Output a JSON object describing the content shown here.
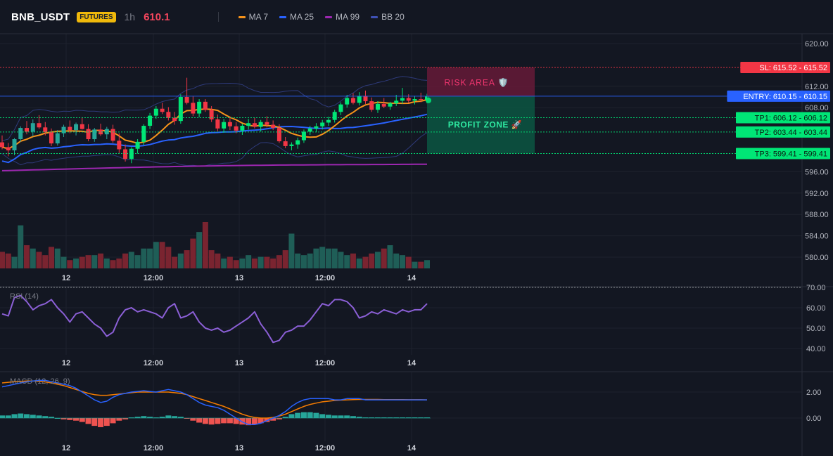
{
  "header": {
    "symbol": "BNB_USDT",
    "badge": "FUTURES",
    "timeframe": "1h",
    "price": "610.1",
    "legend": [
      {
        "label": "MA 7",
        "color": "#f7931a"
      },
      {
        "label": "MA 25",
        "color": "#2962ff"
      },
      {
        "label": "MA 99",
        "color": "#9c27b0"
      },
      {
        "label": "BB 20",
        "color": "#3f51b5"
      }
    ]
  },
  "colors": {
    "up": "#26a69a",
    "up_bright": "#00e676",
    "down": "#f23645",
    "entry": "#2962ff",
    "sl": "#f23645",
    "tp": "#00e676"
  },
  "time_axis_labels": [
    "12",
    "12:00",
    "13",
    "12:00",
    "14"
  ],
  "chart_data": [
    {
      "type": "candlestick",
      "ylim": [
        577.5,
        621.5
      ],
      "y_ticks": [
        "620.00",
        "612.00",
        "608.00",
        "596.00",
        "592.00",
        "588.00",
        "584.00",
        "580.00"
      ],
      "ohlc": [
        [
          601.5,
          602.8,
          600.2,
          600.6
        ],
        [
          600.6,
          601.4,
          598.9,
          600.0
        ],
        [
          600.0,
          602.3,
          599.1,
          602.1
        ],
        [
          602.1,
          604.5,
          601.6,
          604.2
        ],
        [
          604.2,
          605.5,
          603.0,
          603.5
        ],
        [
          603.5,
          605.8,
          602.6,
          605.1
        ],
        [
          605.1,
          606.6,
          604.0,
          604.3
        ],
        [
          604.3,
          605.3,
          602.8,
          603.4
        ],
        [
          603.4,
          604.1,
          600.8,
          601.3
        ],
        [
          601.3,
          603.8,
          600.9,
          603.2
        ],
        [
          603.2,
          604.8,
          602.5,
          604.4
        ],
        [
          604.4,
          605.6,
          603.2,
          603.8
        ],
        [
          603.8,
          605.2,
          602.8,
          604.9
        ],
        [
          604.9,
          606.2,
          603.9,
          604.0
        ],
        [
          604.0,
          604.9,
          601.7,
          602.1
        ],
        [
          602.1,
          604.2,
          601.6,
          603.9
        ],
        [
          603.9,
          605.0,
          602.7,
          603.0
        ],
        [
          603.0,
          604.4,
          602.1,
          604.0
        ],
        [
          604.0,
          604.8,
          601.4,
          601.8
        ],
        [
          601.8,
          603.2,
          599.5,
          600.2
        ],
        [
          600.2,
          601.1,
          597.9,
          598.4
        ],
        [
          598.4,
          600.6,
          597.6,
          600.3
        ],
        [
          600.3,
          602.1,
          599.4,
          601.6
        ],
        [
          601.6,
          604.9,
          601.0,
          604.6
        ],
        [
          604.6,
          607.0,
          604.0,
          606.5
        ],
        [
          606.5,
          608.3,
          605.9,
          607.8
        ],
        [
          607.8,
          608.9,
          606.8,
          607.2
        ],
        [
          607.2,
          608.1,
          605.6,
          606.1
        ],
        [
          606.1,
          607.2,
          604.8,
          605.5
        ],
        [
          605.5,
          610.5,
          605.0,
          610.0
        ],
        [
          610.0,
          613.6,
          608.6,
          608.9
        ],
        [
          608.9,
          610.1,
          606.4,
          606.9
        ],
        [
          606.9,
          609.6,
          606.2,
          609.1
        ],
        [
          609.1,
          609.6,
          607.2,
          607.6
        ],
        [
          607.6,
          608.3,
          605.3,
          605.8
        ],
        [
          605.8,
          606.7,
          603.6,
          604.1
        ],
        [
          604.1,
          605.9,
          603.3,
          605.3
        ],
        [
          605.3,
          606.2,
          603.8,
          604.5
        ],
        [
          604.5,
          605.3,
          603.2,
          603.7
        ],
        [
          603.7,
          605.0,
          602.9,
          604.6
        ],
        [
          604.6,
          605.9,
          603.9,
          605.1
        ],
        [
          605.1,
          606.1,
          604.1,
          604.4
        ],
        [
          604.4,
          605.7,
          603.5,
          605.3
        ],
        [
          605.3,
          606.4,
          604.3,
          604.8
        ],
        [
          604.8,
          605.6,
          603.8,
          604.2
        ],
        [
          604.2,
          604.9,
          601.4,
          601.7
        ],
        [
          601.7,
          602.5,
          600.4,
          600.8
        ],
        [
          600.8,
          601.5,
          600.0,
          601.1
        ],
        [
          601.1,
          602.4,
          600.3,
          601.9
        ],
        [
          601.9,
          603.9,
          601.4,
          603.5
        ],
        [
          603.5,
          604.6,
          602.9,
          604.1
        ],
        [
          604.1,
          605.1,
          603.4,
          604.5
        ],
        [
          604.5,
          605.7,
          603.9,
          605.2
        ],
        [
          605.2,
          606.3,
          604.6,
          605.7
        ],
        [
          605.7,
          607.6,
          605.2,
          607.2
        ],
        [
          607.2,
          609.0,
          606.6,
          608.6
        ],
        [
          608.6,
          610.4,
          608.0,
          609.8
        ],
        [
          609.8,
          610.7,
          608.6,
          608.9
        ],
        [
          608.9,
          610.9,
          608.4,
          610.2
        ],
        [
          610.2,
          611.2,
          608.7,
          609.2
        ],
        [
          609.2,
          609.9,
          607.2,
          607.6
        ],
        [
          607.6,
          609.2,
          607.0,
          608.7
        ],
        [
          608.7,
          609.8,
          607.9,
          608.2
        ],
        [
          608.2,
          609.1,
          607.6,
          608.8
        ],
        [
          608.8,
          610.4,
          608.3,
          609.3
        ],
        [
          609.3,
          611.7,
          608.7,
          609.8
        ],
        [
          609.8,
          610.5,
          608.9,
          609.3
        ],
        [
          609.3,
          610.2,
          608.6,
          609.6
        ],
        [
          609.6,
          610.8,
          609.0,
          609.5
        ],
        [
          609.5,
          610.6,
          608.8,
          610.1
        ]
      ],
      "volume": [
        10,
        9,
        7,
        26,
        14,
        12,
        10,
        8,
        13,
        12,
        7,
        5,
        6,
        7,
        8,
        8,
        9,
        6,
        5,
        6,
        9,
        10,
        8,
        12,
        12,
        16,
        16,
        13,
        7,
        9,
        11,
        18,
        22,
        28,
        11,
        9,
        6,
        7,
        5,
        6,
        8,
        6,
        7,
        7,
        6,
        8,
        11,
        21,
        9,
        8,
        9,
        12,
        13,
        12,
        12,
        10,
        8,
        9,
        6,
        7,
        9,
        10,
        12,
        14,
        9,
        8,
        7,
        4,
        4,
        5
      ]
    },
    {
      "type": "line",
      "title": "RSI (14)",
      "ylim": [
        36,
        70
      ],
      "y_ticks": [
        "70.00",
        "60.00",
        "50.00",
        "40.00"
      ],
      "values": [
        57,
        56,
        65,
        66,
        63,
        59,
        61,
        62,
        64,
        60,
        57,
        53,
        57,
        58,
        55,
        52,
        50,
        46,
        48,
        55,
        59,
        60,
        58,
        59,
        58,
        57,
        55,
        60,
        62,
        55,
        56,
        58,
        53,
        50,
        49,
        50,
        48,
        49,
        51,
        53,
        55,
        58,
        52,
        48,
        43,
        44,
        48,
        49,
        51,
        51,
        54,
        58,
        62,
        61,
        64,
        64,
        63,
        60,
        55,
        56,
        58,
        57,
        59,
        58,
        57,
        59,
        58,
        59,
        59,
        62
      ]
    },
    {
      "type": "bar",
      "title": "MACD (12, 26, 9)",
      "ylim": [
        -1.2,
        3.2
      ],
      "y_ticks": [
        "2.00",
        "0.00"
      ],
      "macd": [
        2.4,
        2.5,
        2.6,
        2.7,
        2.8,
        2.85,
        2.9,
        2.9,
        2.8,
        2.7,
        2.6,
        2.5,
        2.3,
        2.0,
        1.7,
        1.4,
        1.2,
        1.3,
        1.6,
        1.8,
        1.9,
        2.0,
        2.05,
        2.1,
        2.05,
        2.0,
        2.1,
        2.2,
        2.1,
        2.0,
        1.8,
        1.5,
        1.2,
        1.0,
        0.9,
        0.8,
        0.6,
        0.3,
        0.0,
        -0.3,
        -0.5,
        -0.5,
        -0.4,
        -0.2,
        0.0,
        0.2,
        0.5,
        0.9,
        1.2,
        1.4,
        1.5,
        1.5,
        1.5,
        1.5,
        1.4,
        1.4,
        1.5,
        1.5,
        1.5,
        1.4,
        1.4,
        1.4,
        1.4,
        1.4,
        1.4,
        1.4,
        1.4,
        1.4,
        1.4,
        1.4
      ],
      "signal": [
        2.7,
        2.75,
        2.8,
        2.82,
        2.85,
        2.85,
        2.82,
        2.78,
        2.7,
        2.6,
        2.5,
        2.35,
        2.2,
        2.05,
        1.9,
        1.8,
        1.75,
        1.75,
        1.8,
        1.85,
        1.9,
        1.95,
        2.0,
        2.0,
        2.0,
        2.0,
        2.0,
        2.0,
        1.95,
        1.9,
        1.8,
        1.65,
        1.5,
        1.35,
        1.2,
        1.05,
        0.9,
        0.7,
        0.5,
        0.3,
        0.15,
        0.05,
        0.0,
        0.0,
        0.05,
        0.15,
        0.3,
        0.5,
        0.7,
        0.9,
        1.05,
        1.15,
        1.25,
        1.3,
        1.35,
        1.38,
        1.4,
        1.42,
        1.43,
        1.43,
        1.43,
        1.43,
        1.42,
        1.42,
        1.42,
        1.42,
        1.41,
        1.41,
        1.41,
        1.4
      ],
      "histogram": [
        0.2,
        0.2,
        0.3,
        0.35,
        0.3,
        0.25,
        0.2,
        0.15,
        0.1,
        0.0,
        -0.1,
        -0.15,
        -0.2,
        -0.3,
        -0.45,
        -0.6,
        -0.7,
        -0.6,
        -0.4,
        -0.2,
        -0.1,
        0.05,
        0.1,
        0.15,
        0.1,
        0.05,
        0.1,
        0.2,
        0.15,
        0.1,
        -0.05,
        -0.2,
        -0.35,
        -0.45,
        -0.5,
        -0.45,
        -0.4,
        -0.4,
        -0.45,
        -0.5,
        -0.55,
        -0.5,
        -0.4,
        -0.3,
        -0.2,
        -0.1,
        0.1,
        0.3,
        0.4,
        0.45,
        0.45,
        0.4,
        0.3,
        0.25,
        0.2,
        0.2,
        0.2,
        0.15,
        0.1,
        0.05,
        0.05,
        0.05,
        0.05,
        0.05,
        0.05,
        0.05,
        0.05,
        0.05,
        0.05,
        0.05
      ]
    }
  ],
  "levels": {
    "sl": {
      "label": "SL: 615.52 - 615.52",
      "value": 615.52
    },
    "entry": {
      "label": "ENTRY: 610.15 - 610.15",
      "value": 610.15
    },
    "tp": [
      {
        "label": "TP1: 606.12 - 606.12",
        "value": 606.12
      },
      {
        "label": "TP2: 603.44 - 603.44",
        "value": 603.44
      },
      {
        "label": "TP3: 599.41 - 599.41",
        "value": 599.41
      }
    ]
  },
  "zones": {
    "risk": {
      "label": "RISK AREA 🛡️"
    },
    "profit": {
      "label": "PROFIT ZONE 🚀"
    }
  }
}
